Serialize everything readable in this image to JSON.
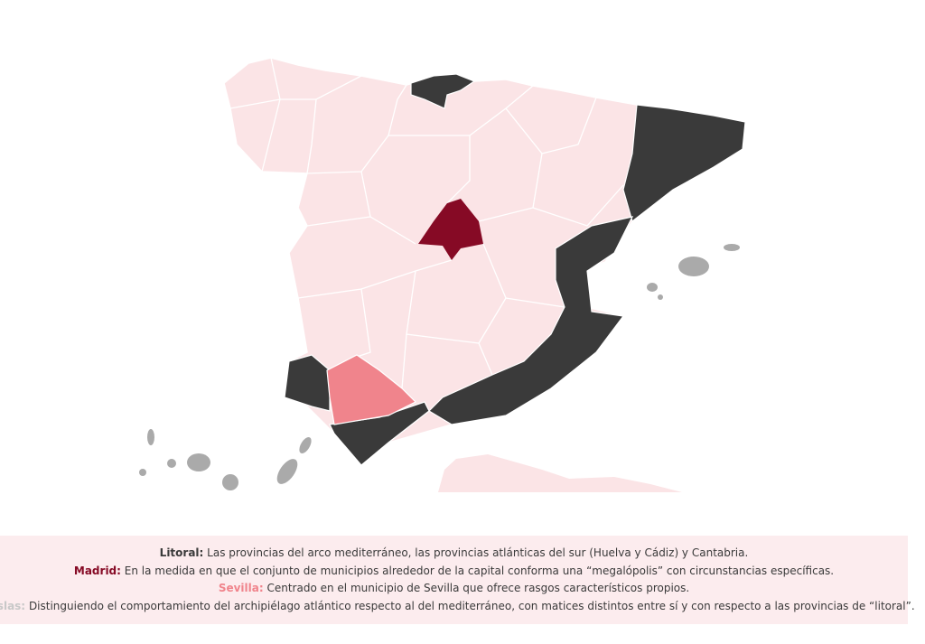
{
  "legend": [
    {
      "label": "Litoral:",
      "text": "Las provincias del arco mediterráneo, las provincias atlánticas del sur (Huelva y Cádiz)  y Cantabria."
    },
    {
      "label": "Madrid:",
      "text": "En la medida en que el conjunto de municipios alrededor de la capital conforma una “megalópolis” con circunstancias específicas."
    },
    {
      "label": "Sevilla:",
      "text": "Centrado en el municipio de Sevilla que ofrece rasgos característicos propios."
    },
    {
      "label": "Islas:",
      "text": "Distinguiendo el comportamiento del archipiélago atlántico respecto al del mediterráneo, con matices distintos entre sí y con respecto a las provincias de “litoral”."
    }
  ]
}
